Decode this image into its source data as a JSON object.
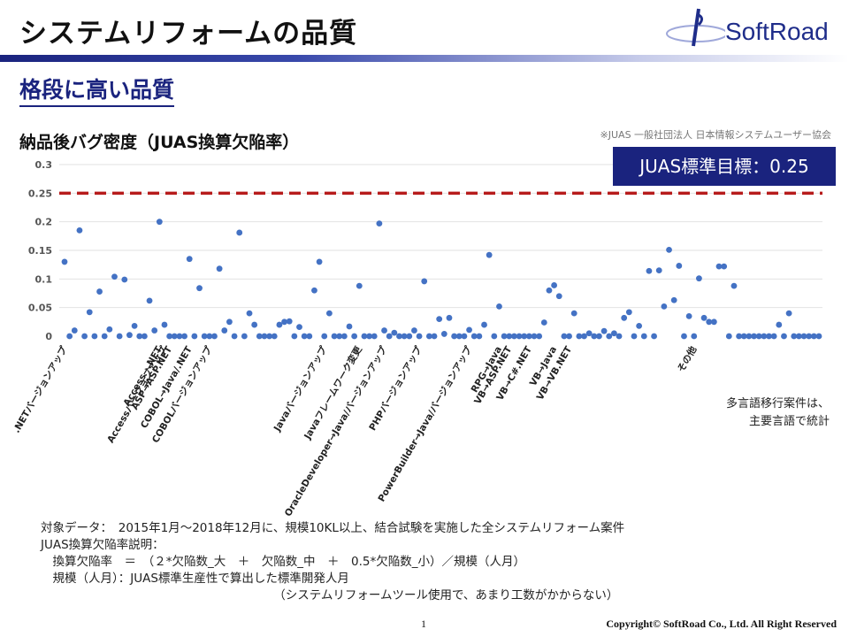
{
  "slide": {
    "title": "システムリフォームの品質",
    "logo_text": "SoftRoad",
    "subtitle": "格段に高い品質",
    "chart_heading": "納品後バグ密度（JUAS換算欠陥率）",
    "source_note": "※JUAS 一般社団法人 日本情報システムユーザー協会",
    "target_label": "JUAS標準目標：0.25",
    "note_lines": [
      "多言語移行案件は、",
      "主要言語で統計"
    ],
    "explain_lines": [
      "対象データ：　2015年1月～2018年12月に、規模10KL以上、結合試験を実施した全システムリフォーム案件",
      "JUAS換算欠陥率説明：",
      "　換算欠陥率　＝　（２*欠陥数_大　＋　欠陥数_中　＋　0.5*欠陥数_小）／規模（人月）",
      "　規模（人月）：JUAS標準生産性で算出した標準開発人月",
      "　　　　　　　　　　　　　　　　　　　　（システムリフォームツール使用で、あまり工数がかからない）"
    ],
    "page_number": "1",
    "copyright": "Copyright© SoftRoad Co., Ltd. All Right Reserved"
  },
  "colors": {
    "accent": "#1a237e",
    "points": "#4472c4",
    "target_line": "#b71c1c"
  },
  "chart_data": {
    "type": "scatter",
    "ylim": [
      0,
      0.3
    ],
    "yticks": [
      "0",
      "0.05",
      "0.1",
      "0.15",
      "0.2",
      "0.25",
      "0.3"
    ],
    "grid": true,
    "target": 0.25,
    "categories": [
      {
        "label": ".NETバージョンアップ",
        "index": 0
      },
      {
        "label": "Access→.NET",
        "index": 19
      },
      {
        "label": "Accessバージョンアップ",
        "index": 20
      },
      {
        "label": "ASP→ASP.NET",
        "index": 21
      },
      {
        "label": "COBOL→Java/.NET",
        "index": 25
      },
      {
        "label": "COBOLバージョンアップ",
        "index": 29
      },
      {
        "label": "Javaバージョンアップ",
        "index": 52
      },
      {
        "label": "Javaフレームワーク変更",
        "index": 59
      },
      {
        "label": "OracleDeveloper→Java/バージョンアップ",
        "index": 64
      },
      {
        "label": "PHPバージョンアップ",
        "index": 71
      },
      {
        "label": "PowerBuilder→Java/バージョンアップ",
        "index": 81
      },
      {
        "label": "RPG→Java",
        "index": 87
      },
      {
        "label": "VB→ASP.NET",
        "index": 89
      },
      {
        "label": "VB→C#.NET",
        "index": 93
      },
      {
        "label": "VB→Java",
        "index": 98
      },
      {
        "label": "VB→VB.NET",
        "index": 101
      },
      {
        "label": "その他",
        "index": 126
      }
    ],
    "values": [
      0.13,
      0,
      0.01,
      0.185,
      0,
      0.042,
      0,
      0.078,
      0,
      0.012,
      0.104,
      0,
      0.099,
      0.002,
      0.018,
      0,
      0,
      0.062,
      0.01,
      0.2,
      0.02,
      0,
      0,
      0,
      0,
      0.135,
      0,
      0.084,
      0,
      0,
      0,
      0.118,
      0.01,
      0.025,
      0,
      0.181,
      0,
      0.04,
      0.02,
      0,
      0,
      0,
      0,
      0.02,
      0.025,
      0.026,
      0,
      0.016,
      0,
      0,
      0.08,
      0.13,
      0,
      0.04,
      0,
      0,
      0,
      0.017,
      0,
      0.088,
      0,
      0,
      0,
      0.197,
      0.01,
      0,
      0.006,
      0,
      0,
      0,
      0.01,
      0,
      0.096,
      0,
      0,
      0.03,
      0.004,
      0.032,
      0,
      0,
      0,
      0.011,
      0,
      0,
      0.02,
      0.142,
      0,
      0.052,
      0,
      0,
      0,
      0,
      0,
      0,
      0,
      0,
      0.024,
      0.08,
      0.089,
      0.07,
      0,
      0,
      0.04,
      0,
      0,
      0.005,
      0,
      0,
      0.009,
      0,
      0.005,
      0,
      0.032,
      0.042,
      0,
      0.018,
      0,
      0.114,
      0,
      0.115,
      0.052,
      0.151,
      0.063,
      0.123,
      0,
      0.035,
      0,
      0.101,
      0.032,
      0.025,
      0.025,
      0.122,
      0.122,
      0,
      0.088,
      0,
      0,
      0,
      0,
      0,
      0,
      0,
      0,
      0.02,
      0,
      0.04,
      0,
      0,
      0,
      0,
      0,
      0
    ]
  }
}
